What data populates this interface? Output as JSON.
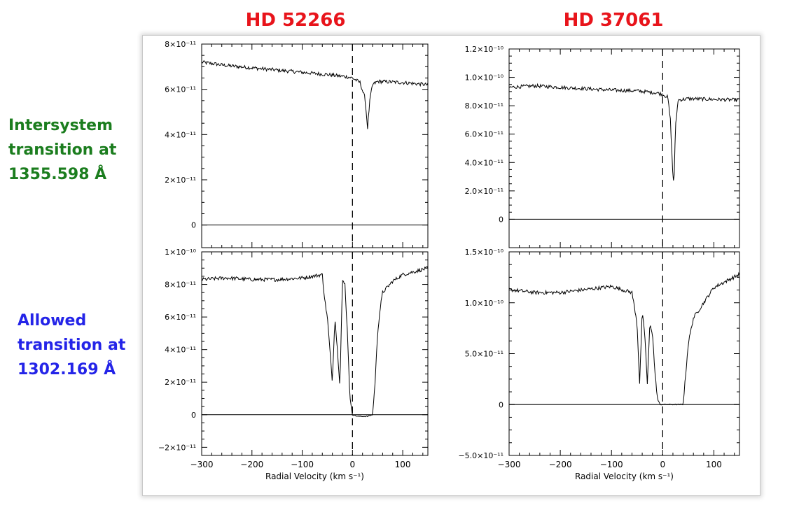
{
  "column_titles": [
    "HD 52266",
    "HD 37061"
  ],
  "row_labels": [
    {
      "lines": [
        "Intersystem",
        "transition at",
        "1355.598 Å"
      ],
      "color": "#1b7d1e"
    },
    {
      "lines": [
        "Allowed",
        "transition at",
        "1302.169 Å"
      ],
      "color": "#2424e8"
    }
  ],
  "xlabel": "Radial Velocity (km s⁻¹)",
  "x_tick_labels": [
    "−300",
    "−200",
    "−100",
    "0",
    "100"
  ],
  "chart_data": [
    {
      "type": "line",
      "title": "HD 52266",
      "xlabel": "",
      "ylabel": "",
      "xlim": [
        -300,
        150
      ],
      "ylim": [
        -1e-11,
        8e-11
      ],
      "y_tick_values": [
        0,
        2e-11,
        4e-11,
        6e-11,
        8e-11
      ],
      "y_tick_labels": [
        "0",
        "2×10⁻¹¹",
        "4×10⁻¹¹",
        "6×10⁻¹¹",
        "8×10⁻¹¹"
      ],
      "zero_line": true,
      "dashed_line_at_x": 0,
      "series": [
        {
          "x": [
            -300,
            -250,
            -200,
            -150,
            -100,
            -50,
            -10,
            0,
            15,
            25,
            30,
            35,
            40,
            50,
            100,
            150
          ],
          "values": [
            7.2e-11,
            7.05e-11,
            6.95e-11,
            6.85e-11,
            6.75e-11,
            6.65e-11,
            6.55e-11,
            6.5e-11,
            6.3e-11,
            5.6e-11,
            4.3e-11,
            5.6e-11,
            6.2e-11,
            6.35e-11,
            6.3e-11,
            6.2e-11
          ]
        }
      ]
    },
    {
      "type": "line",
      "title": "HD 37061",
      "xlabel": "",
      "ylabel": "",
      "xlim": [
        -300,
        150
      ],
      "ylim": [
        -2e-11,
        1.2e-10
      ],
      "y_tick_values": [
        0,
        2e-11,
        4e-11,
        6e-11,
        8e-11,
        1e-10,
        1.2e-10
      ],
      "y_tick_labels": [
        "0",
        "2.0×10⁻¹¹",
        "4.0×10⁻¹¹",
        "6.0×10⁻¹¹",
        "8.0×10⁻¹¹",
        "1.0×10⁻¹⁰",
        "1.2×10⁻¹⁰"
      ],
      "zero_line": true,
      "dashed_line_at_x": 0,
      "series": [
        {
          "x": [
            -300,
            -250,
            -200,
            -150,
            -100,
            -50,
            -10,
            0,
            10,
            15,
            20,
            22,
            25,
            30,
            50,
            100,
            150
          ],
          "values": [
            9.3e-11,
            9.4e-11,
            9.3e-11,
            9.2e-11,
            9.1e-11,
            9.05e-11,
            8.9e-11,
            8.8e-11,
            8.6e-11,
            7e-11,
            3e-11,
            2.5e-11,
            6.5e-11,
            8.4e-11,
            8.5e-11,
            8.45e-11,
            8.4e-11
          ]
        }
      ]
    },
    {
      "type": "line",
      "title": "HD 52266",
      "xlabel": "Radial Velocity (km s⁻¹)",
      "ylabel": "",
      "xlim": [
        -300,
        150
      ],
      "ylim": [
        -2.5e-11,
        1e-10
      ],
      "y_tick_values": [
        -2e-11,
        0,
        2e-11,
        4e-11,
        6e-11,
        8e-11,
        1e-10
      ],
      "y_tick_labels": [
        "−2×10⁻¹¹",
        "0",
        "2×10⁻¹¹",
        "4×10⁻¹¹",
        "6×10⁻¹¹",
        "8×10⁻¹¹",
        "1×10⁻¹⁰"
      ],
      "zero_line": true,
      "dashed_line_at_x": 0,
      "series": [
        {
          "x": [
            -300,
            -250,
            -200,
            -150,
            -100,
            -60,
            -55,
            -50,
            -45,
            -40,
            -35,
            -30,
            -25,
            -20,
            -15,
            -10,
            -5,
            0,
            10,
            20,
            30,
            40,
            45,
            50,
            55,
            60,
            80,
            100,
            150
          ],
          "values": [
            8.3e-11,
            8.4e-11,
            8.3e-11,
            8.3e-11,
            8.4e-11,
            8.6e-11,
            7e-11,
            6e-11,
            4e-11,
            2e-11,
            6e-11,
            4e-11,
            1.8e-11,
            8.2e-11,
            8e-11,
            5e-11,
            1e-11,
            0,
            -1e-12,
            -1e-12,
            -1e-12,
            0,
            2e-11,
            5e-11,
            6.5e-11,
            7.5e-11,
            8.2e-11,
            8.6e-11,
            9e-11
          ]
        }
      ]
    },
    {
      "type": "line",
      "title": "HD 37061",
      "xlabel": "Radial Velocity (km s⁻¹)",
      "ylabel": "",
      "xlim": [
        -300,
        150
      ],
      "ylim": [
        -5e-11,
        1.5e-10
      ],
      "y_tick_values": [
        -5e-11,
        0,
        5e-11,
        1e-10,
        1.5e-10
      ],
      "y_tick_labels": [
        "−5.0×10⁻¹¹",
        "0",
        "5.0×10⁻¹¹",
        "1.0×10⁻¹⁰",
        "1.5×10⁻¹⁰"
      ],
      "zero_line": true,
      "dashed_line_at_x": 0,
      "series": [
        {
          "x": [
            -300,
            -250,
            -200,
            -150,
            -100,
            -60,
            -50,
            -45,
            -40,
            -35,
            -30,
            -25,
            -20,
            -15,
            -10,
            -5,
            0,
            10,
            20,
            30,
            40,
            45,
            50,
            60,
            80,
            100,
            150
          ],
          "values": [
            1.13e-10,
            1.1e-10,
            1.1e-10,
            1.13e-10,
            1.16e-10,
            1.1e-10,
            8e-11,
            2e-11,
            9e-11,
            7e-11,
            2e-11,
            8e-11,
            7e-11,
            3e-11,
            5e-12,
            0,
            0,
            0,
            0,
            0,
            0,
            3e-11,
            6e-11,
            8.5e-11,
            1e-10,
            1.15e-10,
            1.28e-10
          ]
        }
      ]
    }
  ]
}
